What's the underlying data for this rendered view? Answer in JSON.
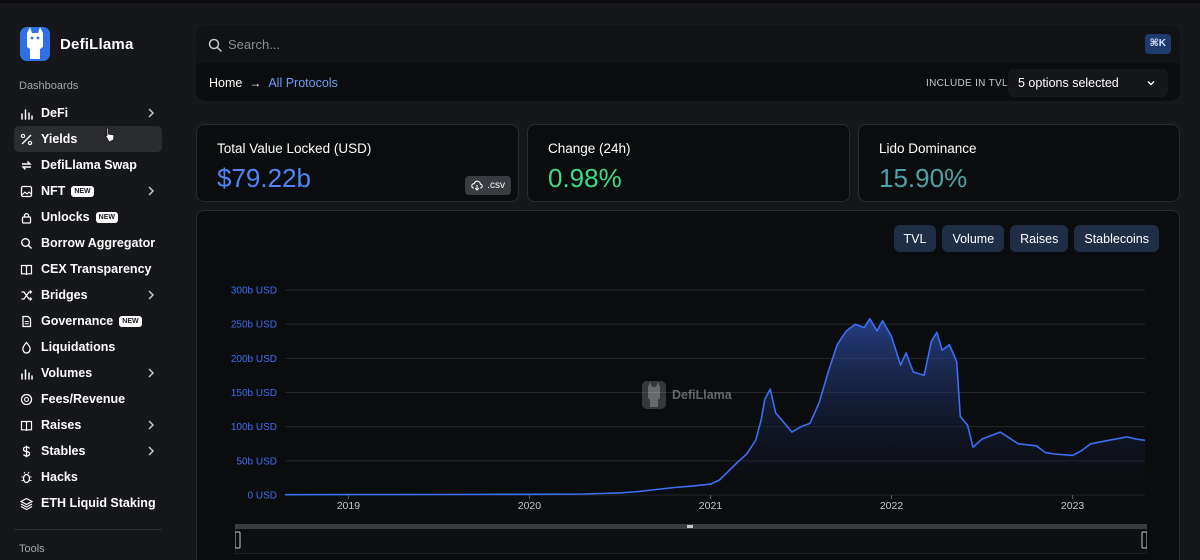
{
  "app": {
    "name": "DefiLlama"
  },
  "sidebar": {
    "dashboards_title": "Dashboards",
    "tools_title": "Tools",
    "items": [
      {
        "label": "DeFi",
        "icon": "bar-chart-icon",
        "chevron": true,
        "badge": ""
      },
      {
        "label": "Yields",
        "icon": "percent-icon",
        "chevron": false,
        "badge": "",
        "active": true
      },
      {
        "label": "DefiLlama Swap",
        "icon": "swap-icon",
        "chevron": false,
        "badge": ""
      },
      {
        "label": "NFT",
        "icon": "image-icon",
        "chevron": true,
        "badge": "NEW"
      },
      {
        "label": "Unlocks",
        "icon": "lock-icon",
        "chevron": false,
        "badge": "NEW"
      },
      {
        "label": "Borrow Aggregator",
        "icon": "search-icon",
        "chevron": false,
        "badge": ""
      },
      {
        "label": "CEX Transparency",
        "icon": "book-icon",
        "chevron": false,
        "badge": ""
      },
      {
        "label": "Bridges",
        "icon": "shuffle-icon",
        "chevron": true,
        "badge": ""
      },
      {
        "label": "Governance",
        "icon": "document-icon",
        "chevron": false,
        "badge": "NEW"
      },
      {
        "label": "Liquidations",
        "icon": "droplet-icon",
        "chevron": false,
        "badge": ""
      },
      {
        "label": "Volumes",
        "icon": "bar-chart-icon",
        "chevron": true,
        "badge": ""
      },
      {
        "label": "Fees/Revenue",
        "icon": "coins-icon",
        "chevron": false,
        "badge": ""
      },
      {
        "label": "Raises",
        "icon": "book-icon",
        "chevron": true,
        "badge": ""
      },
      {
        "label": "Stables",
        "icon": "dollar-icon",
        "chevron": true,
        "badge": ""
      },
      {
        "label": "Hacks",
        "icon": "bug-icon",
        "chevron": false,
        "badge": ""
      },
      {
        "label": "ETH Liquid Staking",
        "icon": "layers-icon",
        "chevron": false,
        "badge": ""
      }
    ]
  },
  "header": {
    "search_placeholder": "Search...",
    "shortcut": "⌘K",
    "breadcrumb_home": "Home",
    "breadcrumb_current": "All Protocols",
    "include_tvl_label": "INCLUDE IN TVL:",
    "include_tvl_value": "5 options selected"
  },
  "metrics": {
    "tvl": {
      "label": "Total Value Locked (USD)",
      "value": "$79.22b",
      "csv": ".csv",
      "color": "#4f86f7"
    },
    "change": {
      "label": "Change (24h)",
      "value": "0.98%",
      "color": "#3ddc84"
    },
    "dominance": {
      "label": "Lido Dominance",
      "value": "15.90%",
      "color": "#4aa3a6"
    }
  },
  "chart_toggles": [
    "TVL",
    "Volume",
    "Raises",
    "Stablecoins"
  ],
  "watermark": "DefiLlama",
  "colors": {
    "accent": "#4f86f7",
    "line": "#3b6ff5",
    "background": "#16171a",
    "panel": "#0b0c0e"
  },
  "chart_data": {
    "type": "area",
    "title": "",
    "xlabel": "",
    "ylabel": "",
    "x_ticks": [
      "2019",
      "2020",
      "2021",
      "2022",
      "2023"
    ],
    "y_ticks": [
      "0 USD",
      "50b USD",
      "100b USD",
      "150b USD",
      "200b USD",
      "250b USD",
      "300b USD"
    ],
    "ylim": [
      0,
      300
    ],
    "xlim": [
      2018.65,
      2023.4
    ],
    "y_unit": "b USD",
    "grid": true,
    "series": [
      {
        "x": [
          2018.65,
          2019.0,
          2019.5,
          2020.0,
          2020.3,
          2020.5,
          2020.6,
          2020.7,
          2020.8,
          2020.9,
          2021.0,
          2021.05,
          2021.1,
          2021.15,
          2021.2,
          2021.25,
          2021.28,
          2021.3,
          2021.33,
          2021.36,
          2021.4,
          2021.45,
          2021.5,
          2021.55,
          2021.6,
          2021.65,
          2021.7,
          2021.75,
          2021.8,
          2021.85,
          2021.88,
          2021.92,
          2021.95,
          2022.0,
          2022.05,
          2022.08,
          2022.12,
          2022.18,
          2022.22,
          2022.25,
          2022.28,
          2022.32,
          2022.36,
          2022.38,
          2022.42,
          2022.45,
          2022.5,
          2022.6,
          2022.7,
          2022.8,
          2022.85,
          2022.9,
          2023.0,
          2023.05,
          2023.1,
          2023.2,
          2023.3,
          2023.35,
          2023.4
        ],
        "y": [
          0.5,
          0.6,
          0.8,
          1.0,
          1.5,
          3.0,
          5.0,
          8.0,
          11.0,
          13.0,
          16.0,
          22.0,
          35.0,
          48.0,
          60.0,
          80.0,
          110.0,
          140.0,
          155.0,
          120.0,
          108.0,
          92.0,
          100.0,
          105.0,
          135.0,
          180.0,
          220.0,
          240.0,
          250.0,
          245.0,
          258.0,
          240.0,
          255.0,
          232.0,
          190.0,
          208.0,
          180.0,
          175.0,
          225.0,
          238.0,
          212.0,
          220.0,
          195.0,
          115.0,
          102.0,
          70.0,
          82.0,
          92.0,
          75.0,
          72.0,
          62.0,
          60.0,
          58.0,
          65.0,
          75.0,
          80.0,
          85.0,
          82.0,
          80.0
        ]
      }
    ]
  }
}
